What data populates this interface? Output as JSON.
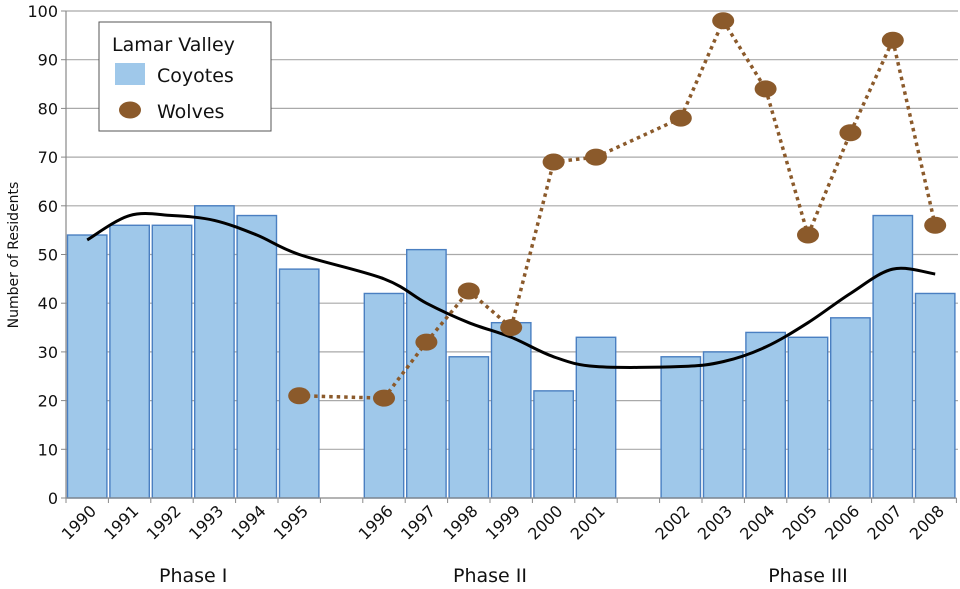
{
  "chart_data": {
    "type": "bar",
    "title": "",
    "xlabel": "",
    "ylabel": "Number of Residents",
    "ylim": [
      0,
      100
    ],
    "yticks": [
      0,
      10,
      20,
      30,
      40,
      50,
      60,
      70,
      80,
      90,
      100
    ],
    "grid": true,
    "categories": [
      "1990",
      "1991",
      "1992",
      "1993",
      "1994",
      "1995",
      "1996",
      "1997",
      "1998",
      "1999",
      "2000",
      "2001",
      "2002",
      "2003",
      "2004",
      "2005",
      "2006",
      "2007",
      "2008"
    ],
    "groups": [
      {
        "label": "Phase I",
        "categories": [
          "1990",
          "1991",
          "1992",
          "1993",
          "1994",
          "1995"
        ]
      },
      {
        "label": "Phase II",
        "categories": [
          "1996",
          "1997",
          "1998",
          "1999",
          "2000",
          "2001"
        ]
      },
      {
        "label": "Phase III",
        "categories": [
          "2002",
          "2003",
          "2004",
          "2005",
          "2006",
          "2007",
          "2008"
        ]
      }
    ],
    "legend": {
      "title": "Lamar Valley",
      "position": "top-left",
      "entries": [
        {
          "label": "Coyotes",
          "marker": "bar"
        },
        {
          "label": "Wolves",
          "marker": "circle"
        }
      ]
    },
    "series": [
      {
        "name": "Coyotes",
        "type": "bar",
        "color": "#9fc8ea",
        "edge_color": "#4a7fc1",
        "values": [
          54,
          56,
          56,
          60,
          58,
          47,
          42,
          51,
          29,
          36,
          22,
          33,
          29,
          30,
          34,
          33,
          37,
          58,
          42
        ]
      },
      {
        "name": "Wolves",
        "type": "line",
        "style": "dotted",
        "color": "#8b5a2b",
        "values": [
          null,
          null,
          null,
          null,
          null,
          21,
          20.5,
          32,
          42.5,
          35,
          69,
          70,
          78,
          98,
          84,
          54,
          75,
          94,
          56
        ]
      },
      {
        "name": "Coyote trend",
        "type": "line",
        "style": "smooth",
        "color": "#000000",
        "values": [
          53,
          58,
          58,
          57,
          54,
          50,
          45,
          40,
          36,
          33,
          29,
          27,
          27,
          28,
          31,
          36,
          42,
          47,
          46
        ]
      }
    ]
  }
}
